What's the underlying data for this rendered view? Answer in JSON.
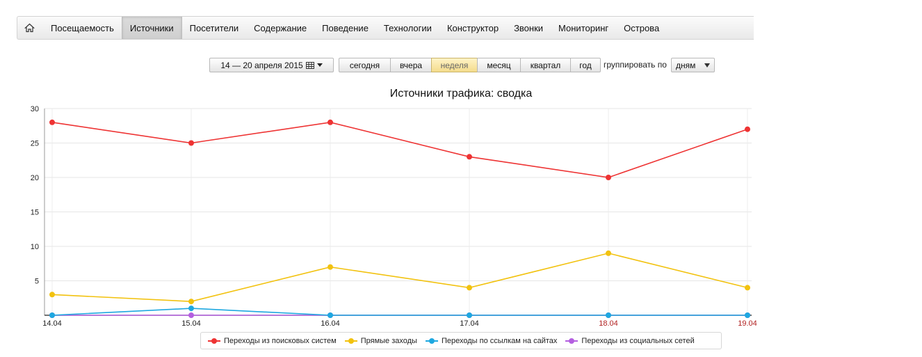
{
  "nav": {
    "home_icon": "home-icon",
    "items": [
      {
        "label": "Посещаемость",
        "active": false
      },
      {
        "label": "Источники",
        "active": true
      },
      {
        "label": "Посетители",
        "active": false
      },
      {
        "label": "Содержание",
        "active": false
      },
      {
        "label": "Поведение",
        "active": false
      },
      {
        "label": "Технологии",
        "active": false
      },
      {
        "label": "Конструктор",
        "active": false
      },
      {
        "label": "Звонки",
        "active": false
      },
      {
        "label": "Мониторинг",
        "active": false
      },
      {
        "label": "Острова",
        "active": false
      }
    ]
  },
  "toolbar": {
    "date_range": "14 — 20 апреля 2015",
    "periods": [
      {
        "label": "сегодня",
        "active": false
      },
      {
        "label": "вчера",
        "active": false
      },
      {
        "label": "неделя",
        "active": true
      },
      {
        "label": "месяц",
        "active": false
      },
      {
        "label": "квартал",
        "active": false
      },
      {
        "label": "год",
        "active": false
      }
    ],
    "group_label": "группировать по",
    "group_value": "дням"
  },
  "chart_data": {
    "type": "line",
    "title": "Источники трафика: сводка",
    "categories": [
      "14.04",
      "15.04",
      "16.04",
      "17.04",
      "18.04",
      "19.04"
    ],
    "weekend_categories": [
      "18.04",
      "19.04"
    ],
    "ylim": [
      0,
      30
    ],
    "yticks": [
      "5",
      "10",
      "15",
      "20",
      "25",
      "30"
    ],
    "grid": true,
    "legend_position": "bottom",
    "series": [
      {
        "name": "Переходы из поисковых систем",
        "color": "#ee3333",
        "values": [
          28,
          25,
          28,
          23,
          20,
          27
        ]
      },
      {
        "name": "Прямые заходы",
        "color": "#f2c20f",
        "values": [
          3,
          2,
          7,
          4,
          9,
          4
        ]
      },
      {
        "name": "Переходы по ссылкам на сайтах",
        "color": "#1ea8e0",
        "values": [
          0,
          1,
          0,
          0,
          0,
          0
        ]
      },
      {
        "name": "Переходы из социальных сетей",
        "color": "#b45fe0",
        "values": [
          0,
          0,
          0,
          0,
          0,
          0
        ]
      }
    ]
  }
}
